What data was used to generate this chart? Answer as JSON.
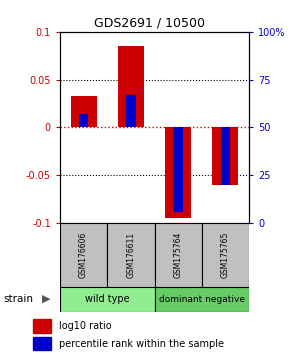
{
  "title": "GDS2691 / 10500",
  "samples": [
    "GSM176606",
    "GSM176611",
    "GSM175764",
    "GSM175765"
  ],
  "log10_ratio": [
    0.033,
    0.085,
    -0.095,
    -0.06
  ],
  "percentile_rank": [
    57,
    67,
    6,
    20
  ],
  "groups": [
    {
      "label": "wild type",
      "indices": [
        0,
        1
      ],
      "color": "#90EE90"
    },
    {
      "label": "dominant negative",
      "indices": [
        2,
        3
      ],
      "color": "#66CC66"
    }
  ],
  "ylim_left": [
    -0.1,
    0.1
  ],
  "ylim_right": [
    0,
    100
  ],
  "yticks_left": [
    -0.1,
    -0.05,
    0,
    0.05,
    0.1
  ],
  "yticks_right": [
    0,
    25,
    50,
    75,
    100
  ],
  "ytick_labels_right": [
    "0",
    "25",
    "50",
    "75",
    "100%"
  ],
  "bar_color_red": "#CC0000",
  "bar_color_blue": "#0000CC",
  "zero_line_color": "#CC0000",
  "background_color": "white",
  "strain_label": "strain",
  "legend_items": [
    {
      "color": "#CC0000",
      "label": "log10 ratio"
    },
    {
      "color": "#0000CC",
      "label": "percentile rank within the sample"
    }
  ]
}
